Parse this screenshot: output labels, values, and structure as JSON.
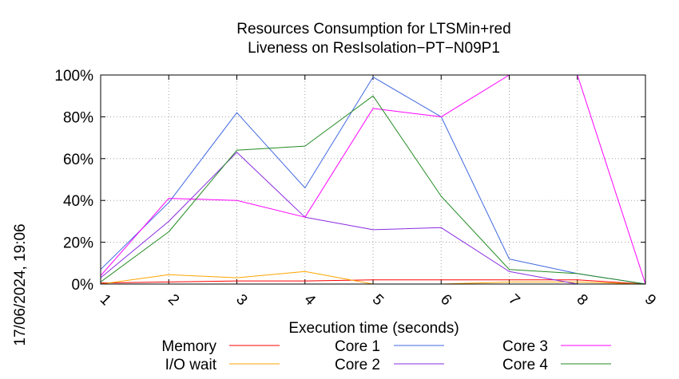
{
  "chart_data": {
    "type": "line",
    "title": [
      "Resources Consumption for LTSMin+red",
      "Liveness on ResIsolation−PT−N09P1"
    ],
    "xlabel": "Execution time (seconds)",
    "ylabel": "",
    "timestamp": "17/06/2024, 19:06",
    "x": [
      1,
      2,
      3,
      4,
      5,
      6,
      7,
      8,
      9
    ],
    "xlim": [
      1,
      9
    ],
    "ylim": [
      0,
      100
    ],
    "x_ticks": [
      "1",
      "2",
      "3",
      "4",
      "5",
      "6",
      "7",
      "8",
      "9"
    ],
    "y_ticks": [
      {
        "value": 0,
        "label": "0%"
      },
      {
        "value": 20,
        "label": "20%"
      },
      {
        "value": 40,
        "label": "40%"
      },
      {
        "value": 60,
        "label": "60%"
      },
      {
        "value": 80,
        "label": "80%"
      },
      {
        "value": 100,
        "label": "100%"
      }
    ],
    "grid": true,
    "legend_position": "bottom",
    "series": [
      {
        "name": "Memory",
        "color": "#ff0000",
        "values": [
          0.5,
          1,
          1.5,
          1.5,
          2,
          2,
          2,
          2,
          0
        ]
      },
      {
        "name": "I/O wait",
        "color": "#ffa500",
        "values": [
          0,
          4.5,
          3,
          6,
          0,
          0,
          1,
          1,
          0
        ]
      },
      {
        "name": "Core 1",
        "color": "#4169e1",
        "values": [
          7,
          39,
          82,
          46,
          99,
          80,
          12,
          5,
          0
        ]
      },
      {
        "name": "Core 2",
        "color": "#8a2be2",
        "values": [
          3,
          30,
          63,
          32,
          26,
          27,
          6,
          0,
          0
        ]
      },
      {
        "name": "Core 3",
        "color": "#ff00ff",
        "values": [
          4,
          41,
          40,
          32,
          84,
          80,
          100,
          100,
          0
        ]
      },
      {
        "name": "Core 4",
        "color": "#228b22",
        "values": [
          1,
          25,
          64,
          66,
          90,
          42,
          7,
          5,
          0
        ]
      }
    ]
  }
}
